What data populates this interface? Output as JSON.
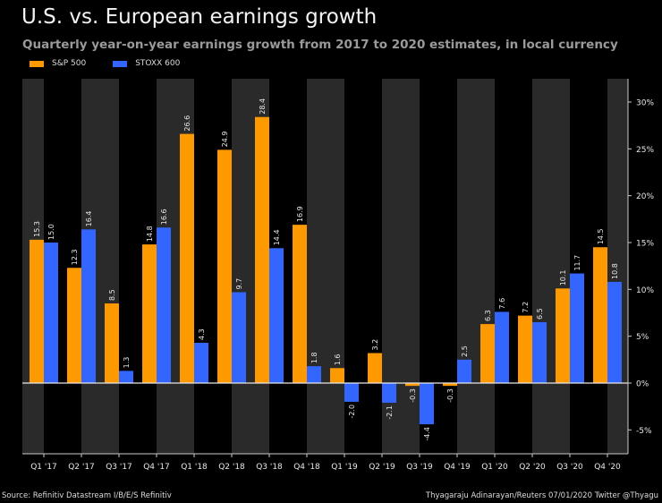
{
  "chart_data": {
    "type": "bar",
    "title": "U.S. vs. European earnings growth",
    "subtitle": "Quarterly year-on-year earnings growth from 2017 to 2020 estimates, in local currency",
    "categories": [
      "Q1 '17",
      "Q2 '17",
      "Q3 '17",
      "Q4 '17",
      "Q1 '18",
      "Q2 '18",
      "Q3 '18",
      "Q4 '18",
      "Q1 '19",
      "Q2 '19",
      "Q3 '19",
      "Q4 '19",
      "Q1 '20",
      "Q2 '20",
      "Q3 '20",
      "Q4 '20"
    ],
    "series": [
      {
        "name": "S&P 500",
        "color": "#ff9900",
        "values": [
          15.3,
          12.3,
          8.5,
          14.8,
          26.6,
          24.9,
          28.4,
          16.9,
          1.6,
          3.2,
          -0.3,
          -0.3,
          6.3,
          7.2,
          10.1,
          14.5
        ]
      },
      {
        "name": "STOXX 600",
        "color": "#3366ff",
        "values": [
          15.0,
          16.4,
          1.3,
          16.6,
          4.3,
          9.7,
          14.4,
          1.8,
          -2.0,
          -2.1,
          -4.4,
          2.5,
          7.6,
          6.5,
          11.7,
          10.8
        ]
      }
    ],
    "data_labels": {
      "S&P 500": [
        "15.3",
        "12.3",
        "8.5",
        "14.8",
        "26.6",
        "24.9",
        "28.4",
        "16.9",
        "1.6",
        "3.2",
        "-0.3",
        "-0.3",
        "6.3",
        "7.2",
        "10.1",
        "14.5"
      ],
      "STOXX 600": [
        "15.0",
        "16.4",
        "1.3",
        "16.6",
        "4.3",
        "9.7",
        "14.4",
        "1.8",
        "-2.0",
        "-2.1",
        "-4.4",
        "2.5",
        "7.6",
        "6.5",
        "11.7",
        "10.8"
      ]
    },
    "yticks": [
      -5,
      0,
      5,
      10,
      15,
      20,
      25,
      30
    ],
    "ytick_labels": [
      "-5%",
      "0%",
      "5%",
      "10%",
      "15%",
      "20%",
      "25%",
      "30%"
    ],
    "ylim": [
      -7.5,
      32.5
    ],
    "y_axis_side": "right",
    "legend_position": "top-left",
    "grid": false,
    "band_color": "#2a2a2a"
  },
  "footer": {
    "source": "Source: Refinitiv Datastream  I/B/E/S Refinitiv",
    "credit": "Thyagaraju Adinarayan/Reuters 07/01/2020 Twitter @Thyagu"
  }
}
